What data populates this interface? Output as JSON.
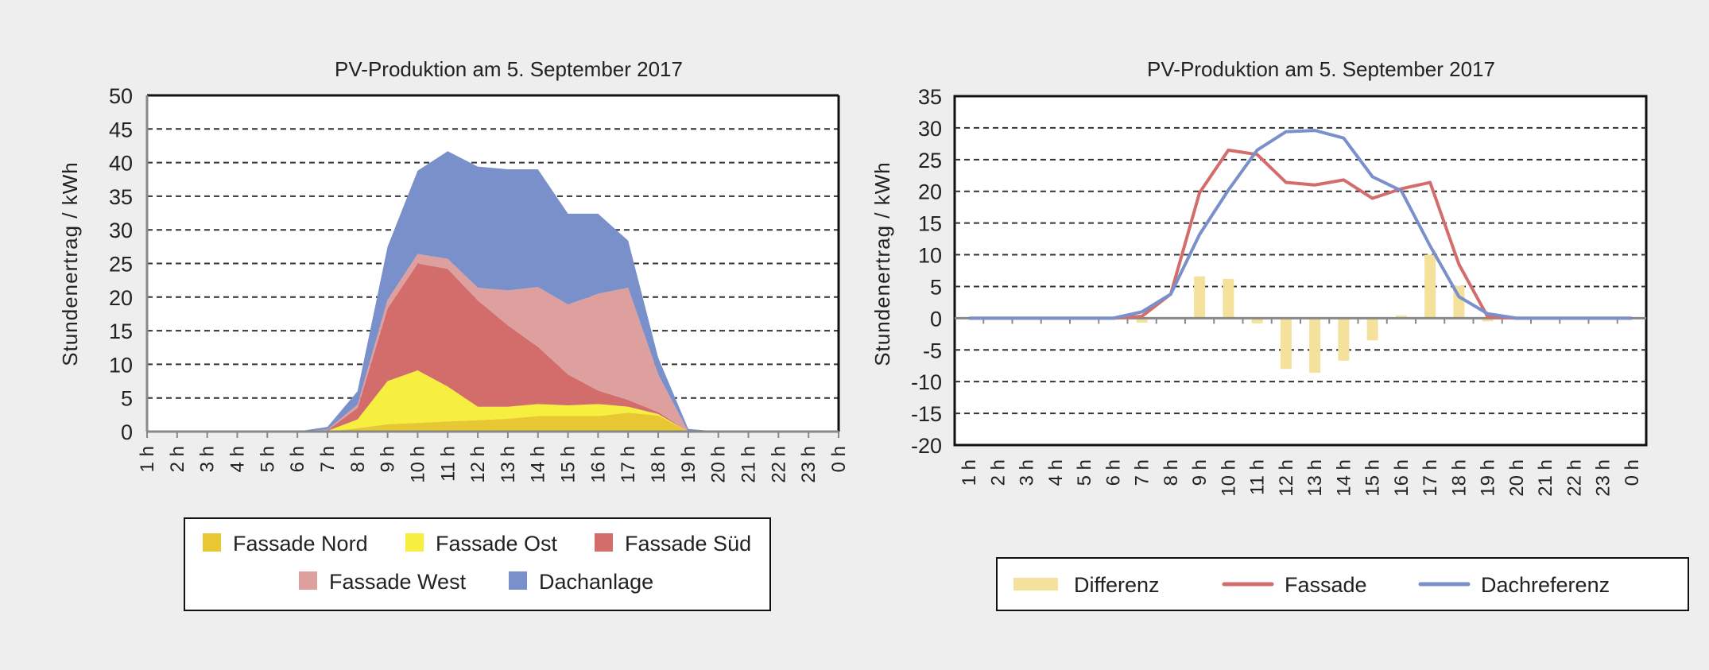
{
  "chart_data": [
    {
      "type": "area",
      "stacked": true,
      "title": "PV-Produktion am 5. September 2017",
      "xlabel": "",
      "ylabel": "Stundenertrag / kWh",
      "ylim": [
        0,
        50
      ],
      "yticks": [
        0,
        5,
        10,
        15,
        20,
        25,
        30,
        35,
        40,
        45,
        50
      ],
      "grid": true,
      "legend_position": "bottom",
      "categories": [
        "1 h",
        "2 h",
        "3 h",
        "4 h",
        "5 h",
        "6 h",
        "7 h",
        "8 h",
        "9 h",
        "10 h",
        "11 h",
        "12 h",
        "13 h",
        "14 h",
        "15 h",
        "16 h",
        "17 h",
        "18 h",
        "19 h",
        "20 h",
        "21 h",
        "22 h",
        "23 h",
        "0 h"
      ],
      "series": [
        {
          "name": "Fassade Nord",
          "color": "#e8c832",
          "values": [
            0,
            0,
            0,
            0,
            0,
            0,
            0,
            0.5,
            1.1,
            1.3,
            1.5,
            1.7,
            1.9,
            2.3,
            2.3,
            2.3,
            2.8,
            2.4,
            0,
            0,
            0,
            0,
            0,
            0
          ]
        },
        {
          "name": "Fassade Ost",
          "color": "#f7ef3f",
          "values": [
            0,
            0,
            0,
            0,
            0,
            0,
            0.1,
            1.3,
            6.4,
            7.8,
            5.2,
            2.0,
            1.8,
            1.8,
            1.6,
            1.8,
            0.9,
            0.2,
            0,
            0,
            0,
            0,
            0,
            0
          ]
        },
        {
          "name": "Fassade Süd",
          "color": "#d36d6c",
          "values": [
            0,
            0,
            0,
            0,
            0,
            0,
            0.1,
            1.7,
            10.8,
            15.9,
            17.5,
            15.8,
            12.1,
            8.5,
            4.6,
            2.0,
            1.0,
            0.3,
            0,
            0,
            0,
            0,
            0,
            0
          ]
        },
        {
          "name": "Fassade West",
          "color": "#dda09f",
          "values": [
            0,
            0,
            0,
            0,
            0,
            0,
            0.1,
            0.5,
            1.3,
            1.4,
            1.5,
            1.9,
            5.2,
            8.9,
            10.4,
            14.4,
            16.7,
            5.6,
            0,
            0,
            0,
            0,
            0,
            0
          ]
        },
        {
          "name": "Dachanlage",
          "color": "#7a90cb",
          "values": [
            0,
            0,
            0,
            0,
            0,
            0,
            0.4,
            2.0,
            7.9,
            12.4,
            16.0,
            18.0,
            18.0,
            17.5,
            13.5,
            11.9,
            7.0,
            2.5,
            0.4,
            0,
            0,
            0,
            0,
            0
          ]
        }
      ]
    },
    {
      "type": "bar+line",
      "title": "PV-Produktion am 5. September 2017",
      "xlabel": "",
      "ylabel": "Stundenertrag / kWh",
      "ylim": [
        -20,
        35
      ],
      "yticks": [
        -20,
        -15,
        -10,
        -5,
        0,
        5,
        10,
        15,
        20,
        25,
        30,
        35
      ],
      "grid": true,
      "legend_position": "bottom",
      "categories": [
        "1 h",
        "2 h",
        "3 h",
        "4 h",
        "5 h",
        "6 h",
        "7 h",
        "8 h",
        "9 h",
        "10 h",
        "11 h",
        "12 h",
        "13 h",
        "14 h",
        "15 h",
        "16 h",
        "17 h",
        "18 h",
        "19 h",
        "20 h",
        "21 h",
        "22 h",
        "23 h",
        "0 h"
      ],
      "series": [
        {
          "name": "Differenz",
          "kind": "bar",
          "color": "#f3e19c",
          "values": [
            0,
            0,
            0,
            0,
            0,
            0,
            -0.7,
            0,
            6.6,
            6.2,
            -0.8,
            -8.0,
            -8.6,
            -6.7,
            -3.5,
            0.4,
            10.0,
            5.1,
            -0.5,
            0,
            0,
            0,
            0,
            0
          ]
        },
        {
          "name": "Fassade",
          "kind": "line",
          "color": "#d36d6c",
          "values": [
            0,
            0,
            0,
            0,
            0,
            0,
            0.3,
            3.8,
            19.8,
            26.5,
            25.8,
            21.4,
            21.0,
            21.8,
            18.9,
            20.4,
            21.4,
            8.5,
            0.2,
            0,
            0,
            0,
            0,
            0
          ]
        },
        {
          "name": "Dachreferenz",
          "kind": "line",
          "color": "#7a90cb",
          "values": [
            0,
            0,
            0,
            0,
            0,
            0,
            1.0,
            3.8,
            13.2,
            20.2,
            26.5,
            29.4,
            29.6,
            28.4,
            22.3,
            20.1,
            11.4,
            3.4,
            0.7,
            0,
            0,
            0,
            0,
            0
          ]
        }
      ]
    }
  ]
}
